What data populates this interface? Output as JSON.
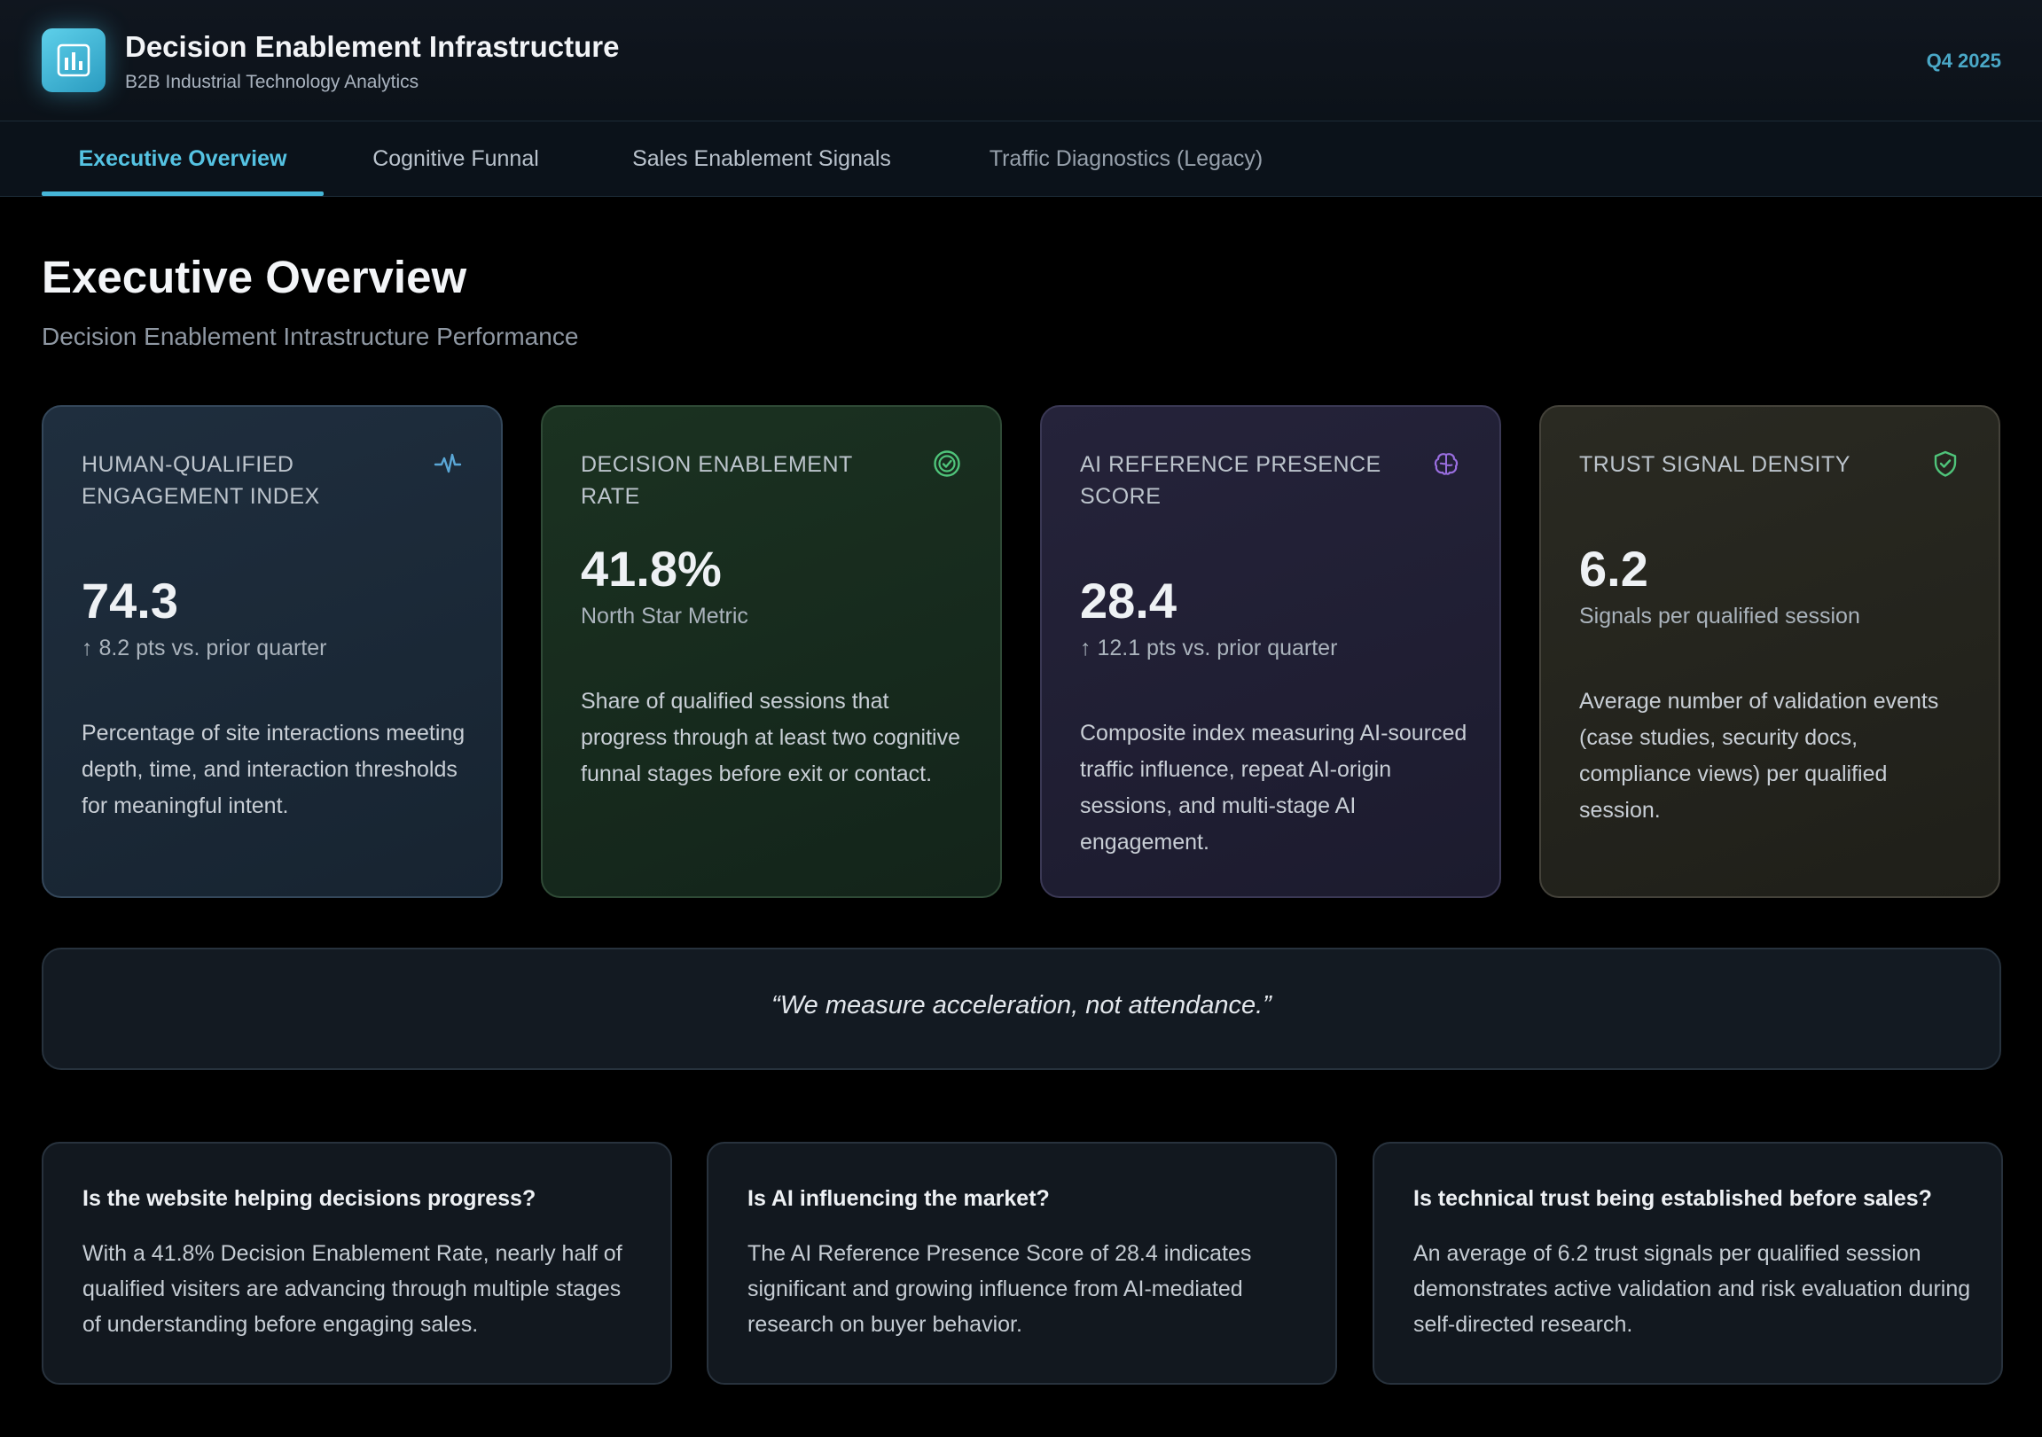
{
  "header": {
    "logo_icon": "bar-chart-icon",
    "title": "Decision Enablement Infrastructure",
    "subtitle": "B2B Industrial Technology Analytics",
    "period": "Q4 2025"
  },
  "tabs": [
    {
      "label": "Executive Overview",
      "active": true
    },
    {
      "label": "Cognitive Funnal",
      "active": false
    },
    {
      "label": "Sales Enablement Signals",
      "active": false
    },
    {
      "label": "Traffic Diagnostics (Legacy)",
      "active": false
    }
  ],
  "page": {
    "title": "Executive Overview",
    "subtitle": "Decision Enablement Intrastructure Performance"
  },
  "metrics": [
    {
      "label": "HUMAN-QUALIFIED ENGAGEMENT INDEX",
      "icon": "pulse-icon",
      "value": "74.3",
      "sub": "↑ 8.2 pts vs. prior quarter",
      "description": "Percentage of site interactions meeting depth, time, and interaction thresholds for meaningful intent.",
      "accent": "#5aa7d6"
    },
    {
      "label": "DECISION ENABLEMENT RATE",
      "icon": "target-check-icon",
      "value": "41.8%",
      "sub": "North Star Metric",
      "description": "Share of qualified sessions that progress through at least two cognitive funnal stages before exit or contact.",
      "accent": "#4fc47a"
    },
    {
      "label": "AI REFERENCE PRESENCE SCORE",
      "icon": "brain-icon",
      "value": "28.4",
      "sub": "↑ 12.1 pts vs. prior quarter",
      "description": "Composite index measuring AI-sourced traffic influence, repeat AI-origin sessions, and multi-stage AI engagement.",
      "accent": "#9a6ee0"
    },
    {
      "label": "TRUST SIGNAL DENSITY",
      "icon": "shield-check-icon",
      "value": "6.2",
      "sub": "Signals per qualified session",
      "description": "Average number of validation events (case studies, security docs, compliance views) per qualified session.",
      "accent": "#4fc47a"
    }
  ],
  "quote": "“We measure acceleration, not attendance.”",
  "insights": [
    {
      "question": "Is the website helping decisions progress?",
      "answer": "With a 41.8% Decision Enablement Rate, nearly half of qualified visiters are advancing through multiple stages of understanding before engaging sales."
    },
    {
      "question": "Is AI influencing the market?",
      "answer": "The AI Reference Presence Score of 28.4 indicates significant and growing influence from AI-mediated research on buyer behavior."
    },
    {
      "question": "Is technical trust being established before sales?",
      "answer": "An average of 6.2 trust signals per qualified session demonstrates active validation and risk evaluation during self-directed research."
    }
  ]
}
